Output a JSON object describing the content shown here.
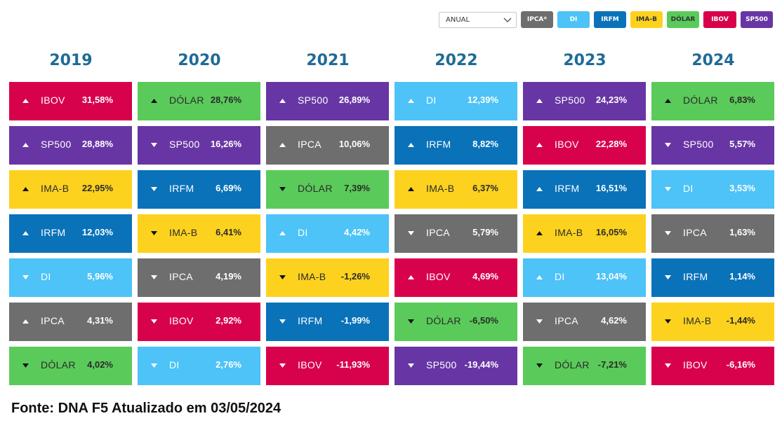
{
  "filter": {
    "period": "ANUAL",
    "legend": [
      {
        "label": "IPCA*",
        "color": "#6e6e6e",
        "text_color": "#ffffff"
      },
      {
        "label": "DI",
        "color": "#4dc3f7",
        "text_color": "#ffffff"
      },
      {
        "label": "IRFM",
        "color": "#0a72b9",
        "text_color": "#ffffff"
      },
      {
        "label": "IMA-B",
        "color": "#fdd21f",
        "text_color": "#333333"
      },
      {
        "label": "DÓLAR",
        "color": "#5acb5a",
        "text_color": "#333333"
      },
      {
        "label": "IBOV",
        "color": "#d8024c",
        "text_color": "#ffffff"
      },
      {
        "label": "SP500",
        "color": "#6736a4",
        "text_color": "#ffffff"
      }
    ]
  },
  "chart_data": {
    "type": "table",
    "colors": {
      "IPCA": "#6e6e6e",
      "DI": "#4dc3f7",
      "IRFM": "#0a72b9",
      "IMA-B": "#fdd21f",
      "DÓLAR": "#5acb5a",
      "IBOV": "#d8024c",
      "SP500": "#6736a4"
    },
    "years": [
      {
        "year": "2019",
        "rows": [
          {
            "asset": "IBOV",
            "value": "31,58%",
            "dir": "up"
          },
          {
            "asset": "SP500",
            "value": "28,88%",
            "dir": "up"
          },
          {
            "asset": "IMA-B",
            "value": "22,95%",
            "dir": "up"
          },
          {
            "asset": "IRFM",
            "value": "12,03%",
            "dir": "up"
          },
          {
            "asset": "DI",
            "value": "5,96%",
            "dir": "down"
          },
          {
            "asset": "IPCA",
            "value": "4,31%",
            "dir": "up"
          },
          {
            "asset": "DÓLAR",
            "value": "4,02%",
            "dir": "down"
          }
        ]
      },
      {
        "year": "2020",
        "rows": [
          {
            "asset": "DÓLAR",
            "value": "28,76%",
            "dir": "up"
          },
          {
            "asset": "SP500",
            "value": "16,26%",
            "dir": "down"
          },
          {
            "asset": "IRFM",
            "value": "6,69%",
            "dir": "down"
          },
          {
            "asset": "IMA-B",
            "value": "6,41%",
            "dir": "down"
          },
          {
            "asset": "IPCA",
            "value": "4,19%",
            "dir": "down"
          },
          {
            "asset": "IBOV",
            "value": "2,92%",
            "dir": "down"
          },
          {
            "asset": "DI",
            "value": "2,76%",
            "dir": "down"
          }
        ]
      },
      {
        "year": "2021",
        "rows": [
          {
            "asset": "SP500",
            "value": "26,89%",
            "dir": "up"
          },
          {
            "asset": "IPCA",
            "value": "10,06%",
            "dir": "up"
          },
          {
            "asset": "DÓLAR",
            "value": "7,39%",
            "dir": "down"
          },
          {
            "asset": "DI",
            "value": "4,42%",
            "dir": "up"
          },
          {
            "asset": "IMA-B",
            "value": "-1,26%",
            "dir": "down"
          },
          {
            "asset": "IRFM",
            "value": "-1,99%",
            "dir": "down"
          },
          {
            "asset": "IBOV",
            "value": "-11,93%",
            "dir": "down"
          }
        ]
      },
      {
        "year": "2022",
        "rows": [
          {
            "asset": "DI",
            "value": "12,39%",
            "dir": "up"
          },
          {
            "asset": "IRFM",
            "value": "8,82%",
            "dir": "up"
          },
          {
            "asset": "IMA-B",
            "value": "6,37%",
            "dir": "up"
          },
          {
            "asset": "IPCA",
            "value": "5,79%",
            "dir": "down"
          },
          {
            "asset": "IBOV",
            "value": "4,69%",
            "dir": "up"
          },
          {
            "asset": "DÓLAR",
            "value": "-6,50%",
            "dir": "down"
          },
          {
            "asset": "SP500",
            "value": "-19,44%",
            "dir": "down"
          }
        ]
      },
      {
        "year": "2023",
        "rows": [
          {
            "asset": "SP500",
            "value": "24,23%",
            "dir": "up"
          },
          {
            "asset": "IBOV",
            "value": "22,28%",
            "dir": "up"
          },
          {
            "asset": "IRFM",
            "value": "16,51%",
            "dir": "up"
          },
          {
            "asset": "IMA-B",
            "value": "16,05%",
            "dir": "up"
          },
          {
            "asset": "DI",
            "value": "13,04%",
            "dir": "up"
          },
          {
            "asset": "IPCA",
            "value": "4,62%",
            "dir": "down"
          },
          {
            "asset": "DÓLAR",
            "value": "-7,21%",
            "dir": "down"
          }
        ]
      },
      {
        "year": "2024",
        "rows": [
          {
            "asset": "DÓLAR",
            "value": "6,83%",
            "dir": "up"
          },
          {
            "asset": "SP500",
            "value": "5,57%",
            "dir": "down"
          },
          {
            "asset": "DI",
            "value": "3,53%",
            "dir": "down"
          },
          {
            "asset": "IPCA",
            "value": "1,63%",
            "dir": "down"
          },
          {
            "asset": "IRFM",
            "value": "1,14%",
            "dir": "down"
          },
          {
            "asset": "IMA-B",
            "value": "-1,44%",
            "dir": "down"
          },
          {
            "asset": "IBOV",
            "value": "-6,16%",
            "dir": "down"
          }
        ]
      }
    ]
  },
  "source_note": "Fonte: DNA F5 Atualizado em 03/05/2024"
}
